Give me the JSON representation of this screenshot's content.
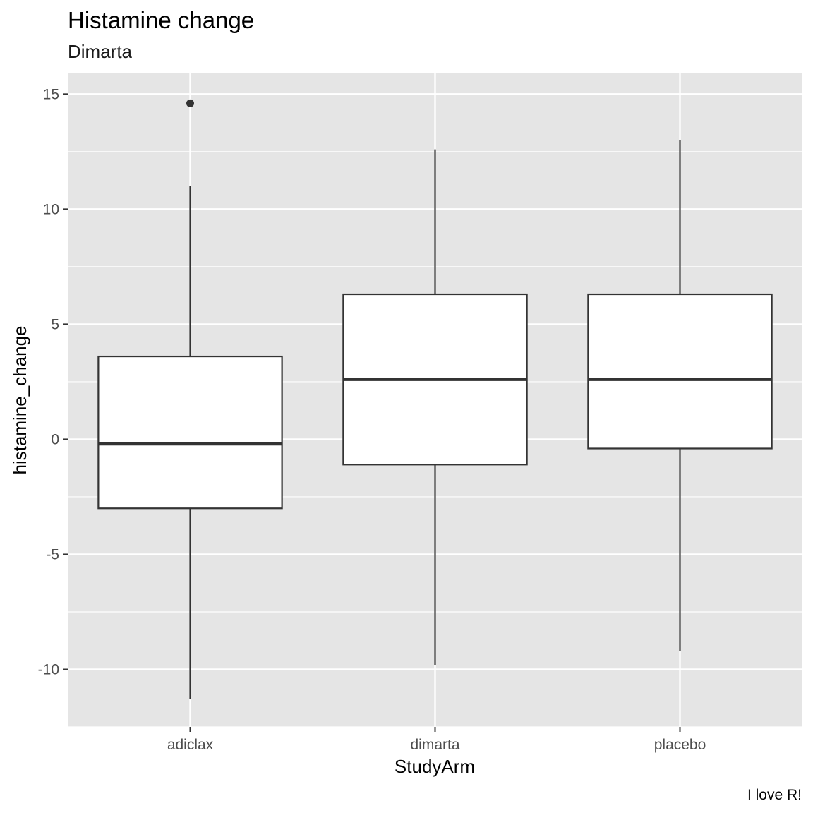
{
  "chart_data": {
    "type": "boxplot",
    "title": "Histamine change",
    "subtitle": "Dimarta",
    "xlabel": "StudyArm",
    "ylabel": "histamine_change",
    "caption": "I love R!",
    "categories": [
      "adiclax",
      "dimarta",
      "placebo"
    ],
    "yticks": [
      15,
      10,
      5,
      0,
      -5,
      -10
    ],
    "ytick_labels": [
      "15",
      "10",
      "5",
      "0",
      "-5",
      "-10"
    ],
    "ylim": [
      -12.5,
      15.9
    ],
    "grid": true,
    "boxes": [
      {
        "category": "adiclax",
        "whisker_low": -11.3,
        "q1": -3.0,
        "median": -0.2,
        "q3": 3.6,
        "whisker_high": 11.0,
        "outliers": [
          14.6
        ]
      },
      {
        "category": "dimarta",
        "whisker_low": -9.8,
        "q1": -1.1,
        "median": 2.6,
        "q3": 6.3,
        "whisker_high": 12.6,
        "outliers": []
      },
      {
        "category": "placebo",
        "whisker_low": -9.2,
        "q1": -0.4,
        "median": 2.6,
        "q3": 6.3,
        "whisker_high": 13.0,
        "outliers": []
      }
    ],
    "colors": {
      "panel": "#e5e5e5",
      "grid": "#ffffff",
      "box_fill": "#ffffff",
      "box_line": "#333333"
    }
  }
}
